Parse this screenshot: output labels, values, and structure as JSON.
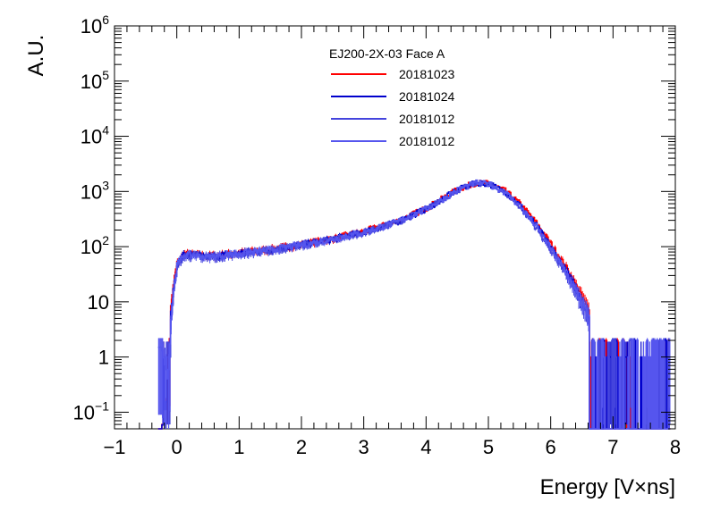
{
  "chart_data": {
    "type": "line",
    "title": "",
    "xlabel": "Energy [V×ns]",
    "ylabel": "A.U.",
    "xlim": [
      -1,
      8
    ],
    "ylim": [
      0.05,
      1000000
    ],
    "yscale": "log",
    "x_ticks": [
      "−1",
      "0",
      "1",
      "2",
      "3",
      "4",
      "5",
      "6",
      "7",
      "8"
    ],
    "y_ticks": [
      {
        "base": "10",
        "exp": "−1",
        "value": 0.1
      },
      {
        "base": "1",
        "exp": "",
        "value": 1
      },
      {
        "base": "10",
        "exp": "",
        "value": 10
      },
      {
        "base": "10",
        "exp": "2",
        "value": 100
      },
      {
        "base": "10",
        "exp": "3",
        "value": 1000
      },
      {
        "base": "10",
        "exp": "4",
        "value": 10000
      },
      {
        "base": "10",
        "exp": "5",
        "value": 100000
      },
      {
        "base": "10",
        "exp": "6",
        "value": 1000000
      }
    ],
    "legend": {
      "header": "EJ200-2X-03 Face A",
      "placement": "top-center"
    },
    "x": [
      -0.25,
      -0.15,
      -0.1,
      -0.05,
      0.0,
      0.1,
      0.25,
      0.5,
      0.75,
      1.0,
      1.5,
      2.0,
      2.5,
      3.0,
      3.5,
      4.0,
      4.5,
      4.8,
      5.0,
      5.25,
      5.5,
      5.75,
      6.0,
      6.25,
      6.5,
      6.7,
      6.85,
      7.0,
      7.25,
      7.5,
      7.8
    ],
    "series": [
      {
        "name": "20181023",
        "color": "#ff0000",
        "y": [
          0.05,
          0.3,
          8,
          25,
          50,
          75,
          72,
          68,
          72,
          78,
          90,
          110,
          140,
          190,
          280,
          500,
          1100,
          1450,
          1400,
          1050,
          600,
          280,
          110,
          40,
          12,
          4,
          2,
          1,
          1,
          1,
          1
        ]
      },
      {
        "name": "20181024",
        "color": "#0000cc",
        "y": [
          0.05,
          0.25,
          6,
          22,
          48,
          72,
          70,
          66,
          70,
          76,
          88,
          108,
          138,
          185,
          275,
          490,
          1080,
          1440,
          1380,
          1000,
          560,
          250,
          95,
          34,
          10,
          3.5,
          1.8,
          1,
          1,
          1,
          1
        ]
      },
      {
        "name": "20181012",
        "color": "#4444dd",
        "y": [
          1.5,
          0.4,
          5,
          20,
          45,
          70,
          68,
          64,
          69,
          74,
          86,
          106,
          136,
          182,
          270,
          480,
          1060,
          1430,
          1360,
          980,
          530,
          230,
          85,
          30,
          9,
          3,
          1.5,
          1,
          1,
          1,
          1
        ]
      },
      {
        "name": "20181012",
        "color": "#5555ee",
        "y": [
          1.5,
          0.35,
          5,
          20,
          46,
          71,
          69,
          65,
          70,
          75,
          87,
          107,
          137,
          184,
          272,
          485,
          1070,
          1435,
          1370,
          990,
          540,
          240,
          90,
          32,
          9.5,
          3.2,
          1.6,
          1,
          1,
          1,
          1
        ]
      }
    ]
  }
}
